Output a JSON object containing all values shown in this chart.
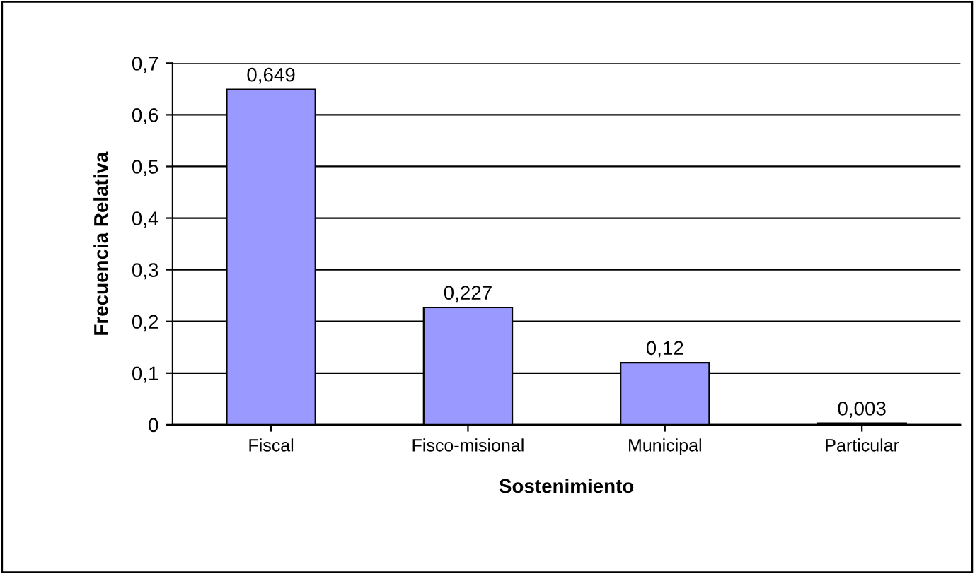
{
  "chart_data": {
    "type": "bar",
    "xlabel": "Sostenimiento",
    "ylabel": "Frecuencia Relativa",
    "categories": [
      "Fiscal",
      "Fisco-misional",
      "Municipal",
      "Particular"
    ],
    "values": [
      0.649,
      0.227,
      0.12,
      0.003
    ],
    "value_labels": [
      "0,649",
      "0,227",
      "0,12",
      "0,003"
    ],
    "color": "#9999ff",
    "ylim": [
      0,
      0.7
    ],
    "yticks": [
      0,
      {
        "value": 0.1,
        "label": "0,1"
      },
      {
        "value": 0.2,
        "label": "0,2"
      },
      {
        "value": 0.3,
        "label": "0,3"
      },
      {
        "value": 0.4,
        "label": "0,4"
      },
      {
        "value": 0.5,
        "label": "0,5"
      },
      {
        "value": 0.6,
        "label": "0,6"
      },
      {
        "value": 0.7,
        "label": "0,7"
      }
    ],
    "grid": "y",
    "legend": false
  }
}
